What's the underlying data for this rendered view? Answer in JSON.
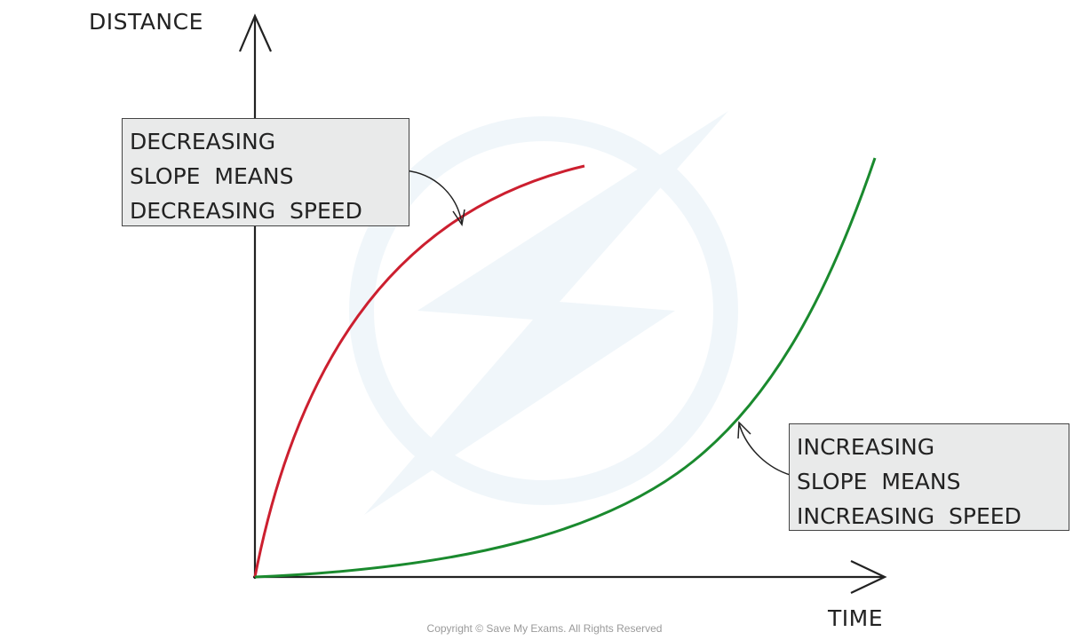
{
  "axes": {
    "y_label": "DISTANCE",
    "x_label": "TIME"
  },
  "callouts": [
    {
      "lines": [
        "DECREASING",
        "SLOPE MEANS",
        "DECREASING SPEED"
      ],
      "color": "#d0021b",
      "target": "red-curve"
    },
    {
      "lines": [
        "INCREASING",
        "SLOPE MEANS",
        "INCREASING SPEED"
      ],
      "color": "#1a8a2e",
      "target": "green-curve"
    }
  ],
  "curves": {
    "decreasing_color": "#cc1f2f",
    "increasing_color": "#1a8a2e"
  },
  "copyright": "Copyright © Save My Exams. All Rights Reserved"
}
